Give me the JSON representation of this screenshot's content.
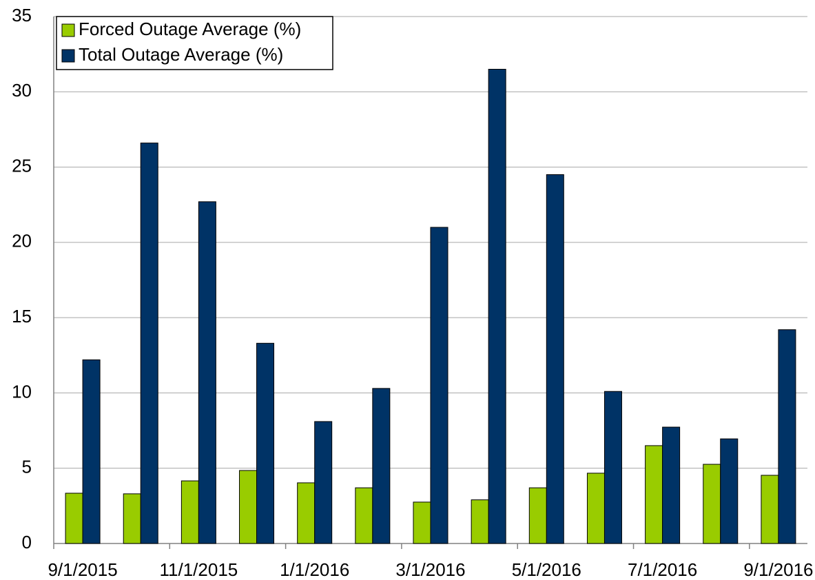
{
  "chart_data": {
    "type": "bar",
    "categories": [
      "9/1/2015",
      null,
      "11/1/2015",
      null,
      "1/1/2016",
      null,
      "3/1/2016",
      null,
      "5/1/2016",
      null,
      "7/1/2016",
      null,
      "9/1/2016"
    ],
    "series": [
      {
        "name": "Forced Outage Average (%)",
        "color": "#99cc00",
        "values": [
          3.34,
          3.3,
          4.16,
          4.85,
          4.03,
          3.7,
          2.75,
          2.9,
          3.7,
          4.67,
          6.5,
          5.26,
          4.53
        ]
      },
      {
        "name": "Total Outage Average (%)",
        "color": "#003366",
        "values": [
          12.2,
          26.6,
          22.7,
          13.3,
          8.1,
          10.3,
          21.0,
          31.5,
          24.5,
          10.1,
          7.73,
          6.95,
          14.2
        ]
      }
    ],
    "ylim": [
      0,
      35
    ],
    "yticks": [
      0,
      5,
      10,
      15,
      20,
      25,
      30,
      35
    ],
    "grid": true,
    "legend": "top-left"
  }
}
